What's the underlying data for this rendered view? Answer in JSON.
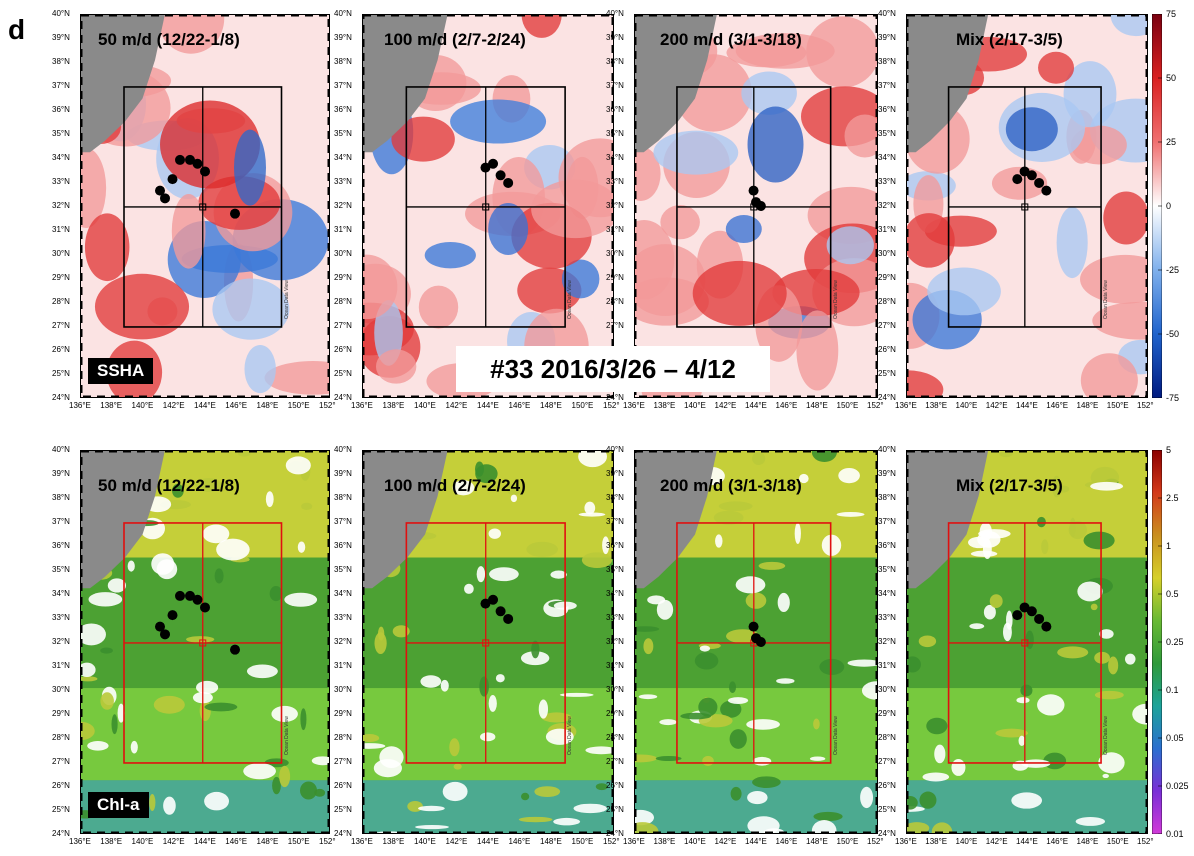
{
  "panel_label": "d",
  "center_caption": "#33 2016/3/26 – 4/12",
  "row_labels": {
    "ssha": "SSHA",
    "chl": "Chl-a"
  },
  "maps": [
    {
      "title": "50 m/d (12/22-1/8)"
    },
    {
      "title": "100 m/d (2/7-2/24)"
    },
    {
      "title": "200 m/d (3/1-3/18)"
    },
    {
      "title": "Mix (2/17-3/5)"
    }
  ],
  "lat_ticks": [
    "24°N",
    "25°N",
    "26°N",
    "27°N",
    "28°N",
    "29°N",
    "30°N",
    "31°N",
    "32°N",
    "33°N",
    "34°N",
    "35°N",
    "36°N",
    "37°N",
    "38°N",
    "39°N",
    "40°N"
  ],
  "lon_ticks": [
    "136°E",
    "138°E",
    "140°E",
    "142°E",
    "144°E",
    "146°E",
    "148°E",
    "150°E",
    "152°"
  ],
  "watermark": "Ocean Data View",
  "ssha_colorbar": {
    "ticks": [
      "75",
      "50",
      "25",
      "0",
      "-25",
      "-50",
      "-75"
    ],
    "colors": [
      "#7a0010",
      "#d92121",
      "#f07070",
      "#ffffff",
      "#7fb0ec",
      "#2063cc",
      "#001a80"
    ]
  },
  "chl_colorbar": {
    "ticks": [
      "5",
      "2.5",
      "1",
      "0.5",
      "0.25",
      "0.1",
      "0.05",
      "0.025",
      "0.01"
    ],
    "colors": [
      "#8b0000",
      "#d33a1a",
      "#c98f1f",
      "#d6d02a",
      "#68b933",
      "#2f9a3a",
      "#1da39a",
      "#2b6fcf",
      "#7a2fd6",
      "#d13ad8"
    ]
  },
  "colors": {
    "land": "#8a8a8a",
    "box_ssha": "#000000",
    "box_chl": "#e01010",
    "particles": "#000000"
  }
}
